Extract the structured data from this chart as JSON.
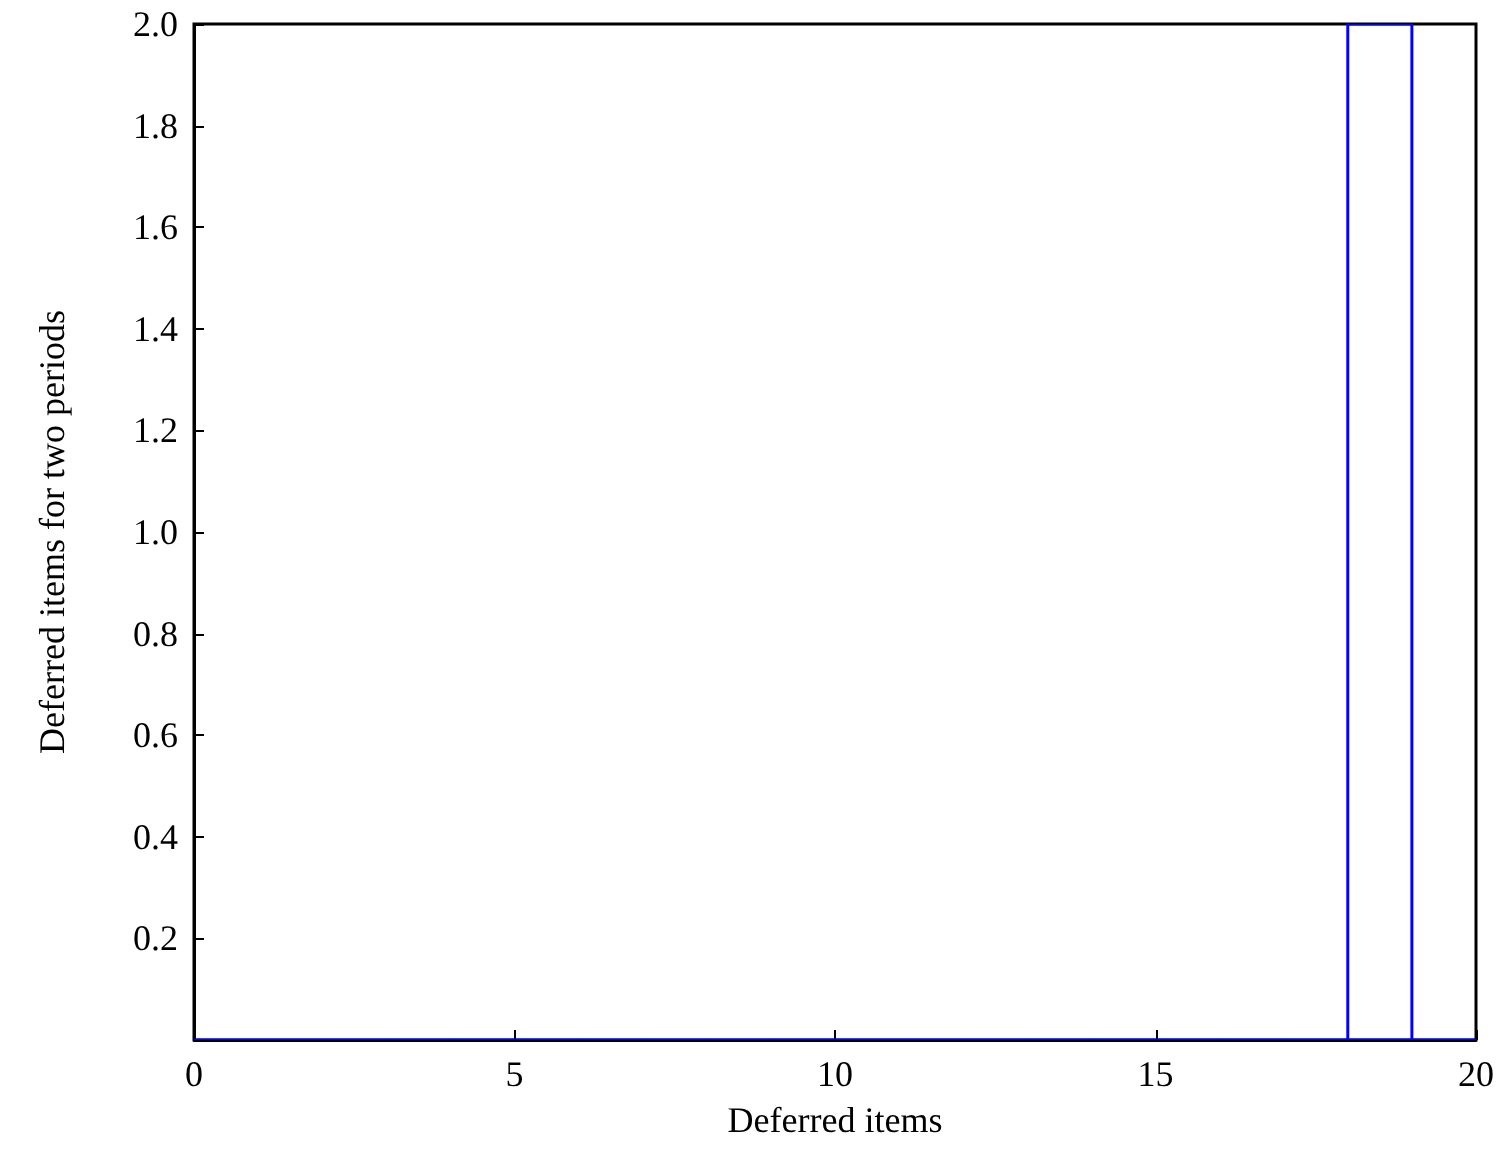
{
  "chart_data": {
    "type": "histogram",
    "xlabel": "Deferred items",
    "ylabel": "Deferred items for two periods",
    "bins": [
      0,
      1,
      2,
      3,
      4,
      5,
      6,
      7,
      8,
      9,
      10,
      11,
      12,
      13,
      14,
      15,
      16,
      17,
      18,
      19,
      20
    ],
    "values": [
      0,
      0,
      0,
      0,
      0,
      0,
      0,
      0,
      0,
      0,
      0,
      0,
      0,
      0,
      0,
      0,
      0,
      0,
      2,
      0
    ],
    "color": "#0000ff",
    "xlim": [
      0,
      20
    ],
    "xticks": [
      0,
      5,
      10,
      15,
      20
    ],
    "ylim": [
      0,
      2
    ],
    "yticks": [
      0.2,
      0.4,
      0.6,
      0.8,
      {
        "value": 1,
        "label": "1.0"
      },
      1.2,
      1.4,
      1.6,
      1.8,
      {
        "value": 2,
        "label": "2.0"
      }
    ],
    "grid": false
  }
}
